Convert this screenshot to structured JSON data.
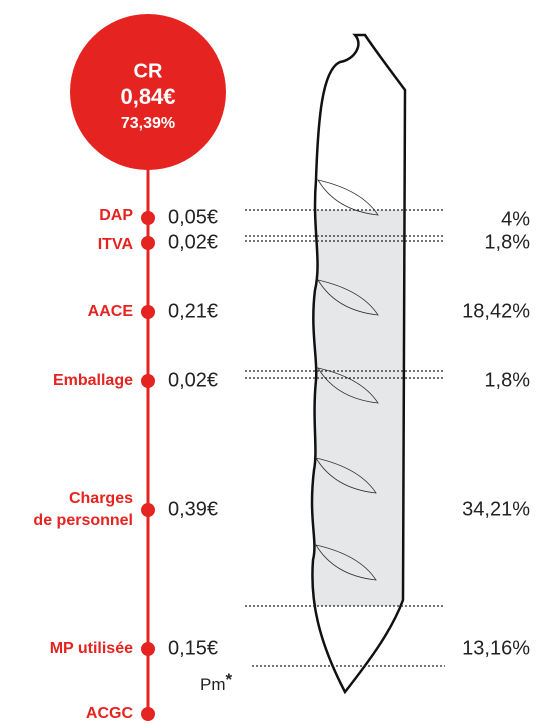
{
  "header": {
    "label": "CR",
    "amount": "0,84€",
    "percent": "73,39%"
  },
  "items": [
    {
      "lines": [
        "DAP"
      ],
      "amount": "0,05€",
      "percent": "4%"
    },
    {
      "lines": [
        "ITVA"
      ],
      "amount": "0,02€",
      "percent": "1,8%"
    },
    {
      "lines": [
        "AACE"
      ],
      "amount": "0,21€",
      "percent": "18,42%"
    },
    {
      "lines": [
        "Emballage"
      ],
      "amount": "0,02€",
      "percent": "1,8%"
    },
    {
      "lines": [
        "Charges",
        "de personnel"
      ],
      "amount": "0,39€",
      "percent": "34,21%"
    },
    {
      "lines": [
        "MP utilisée"
      ],
      "amount": "0,15€",
      "percent": "13,16%"
    },
    {
      "lines": [
        "ACGC"
      ],
      "amount": "Pm",
      "note": "*"
    }
  ]
}
